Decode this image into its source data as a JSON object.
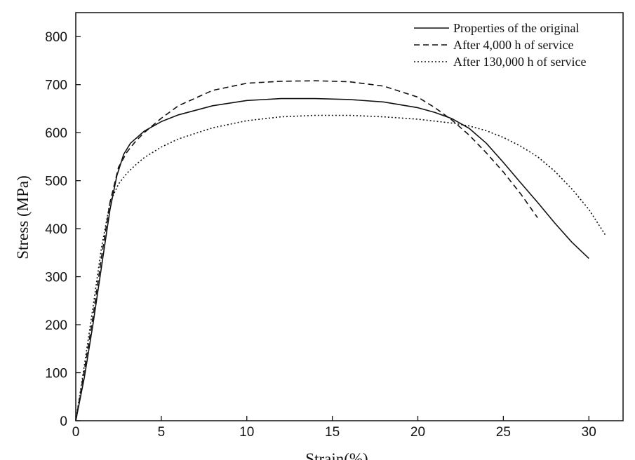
{
  "chart_data": {
    "type": "line",
    "xlabel": "Strain(%)",
    "ylabel": "Stress (MPa)",
    "xlim": [
      0,
      32
    ],
    "ylim": [
      0,
      850
    ],
    "xticks": [
      0,
      5,
      10,
      15,
      20,
      25,
      30
    ],
    "yticks": [
      0,
      100,
      200,
      300,
      400,
      500,
      600,
      700,
      800
    ],
    "grid": false,
    "legend_position": "top-right",
    "series": [
      {
        "name": "Properties of the original",
        "line_style": "solid",
        "color": "#111111",
        "x": [
          0,
          0.5,
          1.0,
          1.5,
          2.0,
          2.4,
          2.8,
          3.2,
          4.0,
          5.0,
          6.0,
          8.0,
          10.0,
          12.0,
          14.0,
          16.0,
          18.0,
          20.0,
          21.0,
          22.0,
          23.0,
          24.0,
          25.0,
          26.0,
          27.0,
          28.0,
          29.0,
          30.0
        ],
        "y": [
          0,
          90,
          200,
          320,
          440,
          510,
          555,
          578,
          603,
          623,
          637,
          656,
          667,
          671,
          671,
          669,
          664,
          652,
          642,
          629,
          609,
          578,
          538,
          496,
          455,
          412,
          372,
          338
        ]
      },
      {
        "name": "After 4,000 h of service",
        "line_style": "dashed",
        "color": "#111111",
        "x": [
          0,
          0.5,
          1.0,
          1.5,
          2.0,
          2.5,
          3.0,
          3.5,
          4.0,
          5.0,
          6.0,
          8.0,
          10.0,
          12.0,
          14.0,
          16.0,
          18.0,
          20.0,
          21.0,
          22.0,
          23.0,
          24.0,
          25.0,
          26.0,
          27.0
        ],
        "y": [
          0,
          105,
          215,
          340,
          455,
          528,
          560,
          582,
          600,
          630,
          656,
          688,
          703,
          707,
          708,
          706,
          697,
          674,
          652,
          626,
          595,
          558,
          518,
          473,
          423
        ]
      },
      {
        "name": "After 130,000 h of service",
        "line_style": "dotted",
        "color": "#111111",
        "x": [
          0,
          0.5,
          1.0,
          1.5,
          2.0,
          2.5,
          3.0,
          3.5,
          4.0,
          5.0,
          6.0,
          8.0,
          10.0,
          12.0,
          14.0,
          16.0,
          18.0,
          20.0,
          22.0,
          23.0,
          24.0,
          25.0,
          26.0,
          27.0,
          28.0,
          29.0,
          30.0,
          31.0
        ],
        "y": [
          0,
          115,
          235,
          360,
          455,
          493,
          516,
          533,
          548,
          570,
          587,
          610,
          625,
          633,
          636,
          636,
          633,
          628,
          620,
          614,
          604,
          590,
          572,
          550,
          520,
          483,
          440,
          385
        ]
      }
    ]
  }
}
